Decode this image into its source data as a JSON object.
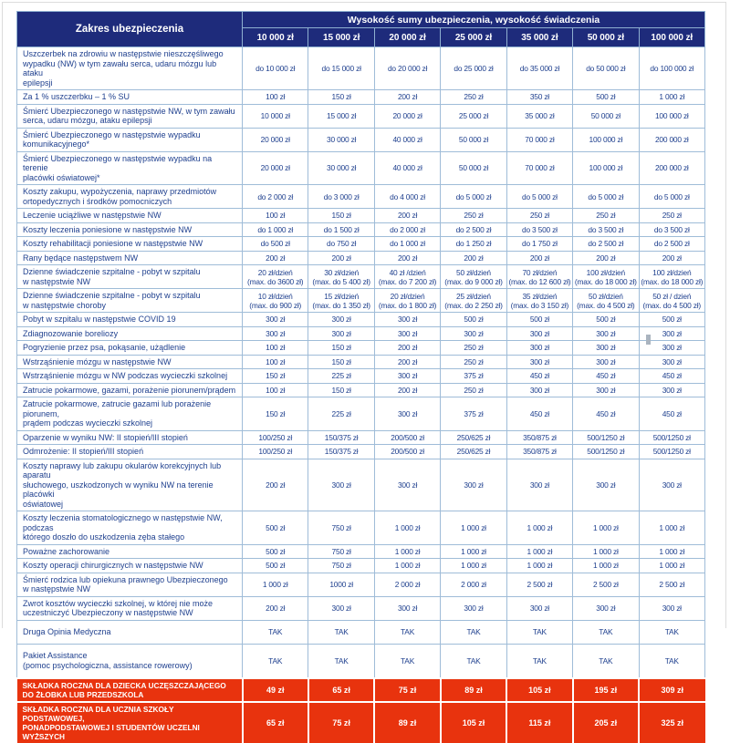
{
  "colors": {
    "header_bg": "#1e2b7b",
    "accent_red": "#e8330e",
    "cell_text": "#20418f",
    "border_blue": "#9fbcd8"
  },
  "table": {
    "corner": "Zakres ubezpieczenia",
    "banner": "Wysokość sumy ubezpieczenia, wysokość świadczenia",
    "columns": [
      "10 000 zł",
      "15 000 zł",
      "20 000 zł",
      "25 000 zł",
      "35 000 zł",
      "50 000 zł",
      "100 000 zł"
    ],
    "rows": [
      {
        "label": "Uszczerbek na zdrowiu w następstwie nieszczęśliwego\nwypadku (NW) w tym zawału serca, udaru mózgu lub ataku\nepilepsji",
        "values": [
          "do 10 000 zł",
          "do 15 000 zł",
          "do 20 000 zł",
          "do 25 000 zł",
          "do 35 000 zł",
          "do 50 000 zł",
          "do 100 000 zł"
        ],
        "premium": false
      },
      {
        "label": "Za 1 % uszczerbku – 1 % SU",
        "values": [
          "100 zł",
          "150 zł",
          "200 zł",
          "250 zł",
          "350 zł",
          "500 zł",
          "1 000 zł"
        ],
        "premium": false
      },
      {
        "label": "Śmierć Ubezpieczonego w następstwie NW, w tym zawału\nserca, udaru mózgu, ataku epilepsji",
        "values": [
          "10 000 zł",
          "15 000 zł",
          "20 000 zł",
          "25 000 zł",
          "35 000 zł",
          "50 000 zł",
          "100 000 zł"
        ],
        "premium": false
      },
      {
        "label": "Śmierć Ubezpieczonego w następstwie wypadku\nkomunikacyjnego*",
        "values": [
          "20 000 zł",
          "30 000 zł",
          "40 000 zł",
          "50 000 zł",
          "70 000 zł",
          "100 000 zł",
          "200 000 zł"
        ],
        "premium": false
      },
      {
        "label": "Śmierć Ubezpieczonego w następstwie wypadku na terenie\nplacówki oświatowej*",
        "values": [
          "20 000 zł",
          "30 000 zł",
          "40 000 zł",
          "50 000 zł",
          "70 000 zł",
          "100 000 zł",
          "200 000 zł"
        ],
        "premium": false
      },
      {
        "label": "Koszty zakupu, wypożyczenia, naprawy przedmiotów\nortopedycznych i środków pomocniczych",
        "values": [
          "do 2 000 zł",
          "do 3 000 zł",
          "do 4 000 zł",
          "do 5 000 zł",
          "do 5 000 zł",
          "do 5 000 zł",
          "do 5 000 zł"
        ],
        "premium": false
      },
      {
        "label": "Leczenie uciążliwe w następstwie NW",
        "values": [
          "100 zł",
          "150 zł",
          "200 zł",
          "250 zł",
          "250 zł",
          "250 zł",
          "250 zł"
        ],
        "premium": false
      },
      {
        "label": "Koszty leczenia poniesione w następstwie NW",
        "values": [
          "do 1 000 zł",
          "do 1 500 zł",
          "do 2 000 zł",
          "do 2 500 zł",
          "do 3 500 zł",
          "do 3 500 zł",
          "do 3 500 zł"
        ],
        "premium": false
      },
      {
        "label": "Koszty rehabilitacji poniesione w następstwie NW",
        "values": [
          "do 500 zł",
          "do 750 zł",
          "do 1 000 zł",
          "do 1 250 zł",
          "do 1 750 zł",
          "do 2 500 zł",
          "do 2 500 zł"
        ],
        "premium": false
      },
      {
        "label": "Rany będące następstwem NW",
        "values": [
          "200 zł",
          "200 zł",
          "200 zł",
          "200 zł",
          "200 zł",
          "200 zł",
          "200 zł"
        ],
        "premium": false
      },
      {
        "label": "Dzienne świadczenie szpitalne - pobyt w szpitalu\nw następstwie NW",
        "values": [
          "20 zł/dzień\n(max. do 3600 zł)",
          "30 zł/dzień\n(max. do 5 400 zł)",
          "40 zł /dzień\n(max. do 7 200 zł)",
          "50 zł/dzień\n(max. do 9 000 zł)",
          "70 zł/dzień\n(max. do 12 600 zł)",
          "100 zł/dzień\n(max. do 18 000 zł)",
          "100 zł/dzień\n(max. do 18 000 zł)"
        ],
        "premium": false
      },
      {
        "label": "Dzienne świadczenie szpitalne - pobyt w szpitalu\nw następstwie choroby",
        "values": [
          "10 zł/dzień\n(max. do 900 zł)",
          "15 zł/dzień\n(max. do 1 350 zł)",
          "20 zł/dzień\n(max. do 1 800 zł)",
          "25 zł/dzień\n(max. do 2 250 zł)",
          "35 zł/dzień\n(max. do 3 150 zł)",
          "50 zł/dzień\n(max. do 4 500 zł)",
          "50 zł / dzień\n(max. do 4 500 zł)"
        ],
        "premium": false
      },
      {
        "label": "Pobyt w szpitalu w następstwie COVID 19",
        "values": [
          "300 zł",
          "300 zł",
          "300 zł",
          "500 zł",
          "500 zł",
          "500 zł",
          "500 zł"
        ],
        "premium": false
      },
      {
        "label": "Zdiagnozowanie boreliozy",
        "values": [
          "300 zł",
          "300 zł",
          "300 zł",
          "300 zł",
          "300 zł",
          "300 zł",
          "300 zł"
        ],
        "premium": false
      },
      {
        "label": "Pogryzienie przez psa, pokąsanie, użądlenie",
        "values": [
          "100 zł",
          "150 zł",
          "200 zł",
          "250 zł",
          "300 zł",
          "300 zł",
          "300 zł"
        ],
        "premium": false
      },
      {
        "label": "Wstrząśnienie mózgu w następstwie NW",
        "values": [
          "100 zł",
          "150 zł",
          "200 zł",
          "250 zł",
          "300 zł",
          "300 zł",
          "300 zł"
        ],
        "premium": false
      },
      {
        "label": "Wstrząśnienie mózgu w NW podczas wycieczki szkolnej",
        "values": [
          "150 zł",
          "225 zł",
          "300 zł",
          "375 zł",
          "450 zł",
          "450 zł",
          "450 zł"
        ],
        "premium": false
      },
      {
        "label": "Zatrucie pokarmowe, gazami, porażenie piorunem/prądem",
        "values": [
          "100 zł",
          "150 zł",
          "200 zł",
          "250 zł",
          "300 zł",
          "300 zł",
          "300 zł"
        ],
        "premium": false
      },
      {
        "label": "Zatrucie pokarmowe, zatrucie gazami lub porażenie piorunem,\nprądem podczas wycieczki szkolnej",
        "values": [
          "150 zł",
          "225 zł",
          "300 zł",
          "375 zł",
          "450 zł",
          "450 zł",
          "450 zł"
        ],
        "premium": false
      },
      {
        "label": "Oparzenie w wyniku NW: II stopień/III stopień",
        "values": [
          "100/250 zł",
          "150/375 zł",
          "200/500 zł",
          "250/625 zł",
          "350/875 zł",
          "500/1250 zł",
          "500/1250 zł"
        ],
        "premium": false
      },
      {
        "label": "Odmrożenie: II stopień/III stopień",
        "values": [
          "100/250 zł",
          "150/375 zł",
          "200/500 zł",
          "250/625 zł",
          "350/875 zł",
          "500/1250 zł",
          "500/1250 zł"
        ],
        "premium": false
      },
      {
        "label": "Koszty naprawy lub zakupu okularów korekcyjnych lub aparatu\nsłuchowego, uszkodzonych w wyniku NW na terenie placówki\noświatowej",
        "values": [
          "200 zł",
          "300 zł",
          "300 zł",
          "300 zł",
          "300 zł",
          "300 zł",
          "300 zł"
        ],
        "premium": false
      },
      {
        "label": "Koszty leczenia stomatologicznego w następstwie NW, podczas\nktórego doszło do uszkodzenia zęba stałego",
        "values": [
          "500 zł",
          "750 zł",
          "1 000 zł",
          "1 000 zł",
          "1 000 zł",
          "1 000 zł",
          "1 000 zł"
        ],
        "premium": false
      },
      {
        "label": "Poważne zachorowanie",
        "values": [
          "500 zł",
          "750 zł",
          "1 000 zł",
          "1 000 zł",
          "1 000 zł",
          "1 000 zł",
          "1 000 zł"
        ],
        "premium": false
      },
      {
        "label": "Koszty operacji chirurgicznych w następstwie NW",
        "values": [
          "500 zł",
          "750 zł",
          "1 000 zł",
          "1 000 zł",
          "1 000 zł",
          "1 000 zł",
          "1 000 zł"
        ],
        "premium": false
      },
      {
        "label": "Śmierć rodzica lub opiekuna prawnego Ubezpieczonego\nw następstwie NW",
        "values": [
          "1 000 zł",
          "1000 zł",
          "2 000 zł",
          "2 000 zł",
          "2 500 zł",
          "2 500 zł",
          "2 500 zł"
        ],
        "premium": false
      },
      {
        "label": "Zwrot kosztów wycieczki szkolnej, w której nie może\nuczestniczyć Ubezpieczony w następstwie NW",
        "values": [
          "200 zł",
          "300 zł",
          "300 zł",
          "300 zł",
          "300 zł",
          "300 zł",
          "300 zł"
        ],
        "premium": false
      },
      {
        "label": "Druga Opinia Medyczna",
        "values": [
          "TAK",
          "TAK",
          "TAK",
          "TAK",
          "TAK",
          "TAK",
          "TAK"
        ],
        "premium": false
      },
      {
        "label": "Pakiet Assistance\n(pomoc psychologiczna, assistance rowerowy)",
        "values": [
          "TAK",
          "TAK",
          "TAK",
          "TAK",
          "TAK",
          "TAK",
          "TAK"
        ],
        "premium": false
      },
      {
        "label": "SKŁADKA ROCZNA DLA DZIECKA UCZĘSZCZAJĄCEGO\nDO ŻŁOBKA LUB PRZEDSZKOLA",
        "values": [
          "49 zł",
          "65 zł",
          "75 zł",
          "89 zł",
          "105 zł",
          "195 zł",
          "309 zł"
        ],
        "premium": true
      },
      {
        "label": "SKŁADKA ROCZNA DLA UCZNIA SZKOŁY PODSTAWOWEJ,\nPONADPODSTAWOWEJ I STUDENTÓW UCZELNI WYŻSZYCH",
        "values": [
          "65 zł",
          "75 zł",
          "89 zł",
          "105 zł",
          "115 zł",
          "205 zł",
          "325 zł"
        ],
        "premium": true
      }
    ]
  }
}
